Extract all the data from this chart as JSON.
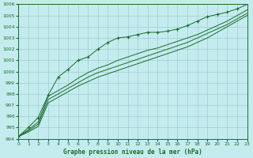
{
  "title": "Graphe pression niveau de la mer (hPa)",
  "background_color": "#c4ecee",
  "grid_color": "#9ecdd4",
  "line_color": "#1a6b2a",
  "xlim": [
    0,
    23
  ],
  "ylim": [
    994,
    1006
  ],
  "xticks": [
    0,
    1,
    2,
    3,
    4,
    5,
    6,
    7,
    8,
    9,
    10,
    11,
    12,
    13,
    14,
    15,
    16,
    17,
    18,
    19,
    20,
    21,
    22,
    23
  ],
  "yticks": [
    994,
    995,
    996,
    997,
    998,
    999,
    1000,
    1001,
    1002,
    1003,
    1004,
    1005,
    1006
  ],
  "series_plain": [
    [
      994.2,
      994.8,
      995.5,
      997.8,
      998.3,
      998.8,
      999.4,
      999.9,
      1000.3,
      1000.6,
      1001.0,
      1001.3,
      1001.6,
      1001.9,
      1002.1,
      1002.4,
      1002.7,
      1003.0,
      1003.3,
      1003.7,
      1004.1,
      1004.5,
      1005.0,
      1005.5
    ],
    [
      994.2,
      994.7,
      995.3,
      997.5,
      998.0,
      998.5,
      999.0,
      999.5,
      999.9,
      1000.2,
      1000.5,
      1000.8,
      1001.1,
      1001.4,
      1001.7,
      1002.0,
      1002.3,
      1002.6,
      1003.0,
      1003.4,
      1003.8,
      1004.2,
      1004.7,
      1005.2
    ],
    [
      994.2,
      994.6,
      995.1,
      997.2,
      997.7,
      998.2,
      998.7,
      999.1,
      999.5,
      999.8,
      1000.1,
      1000.4,
      1000.7,
      1001.0,
      1001.3,
      1001.6,
      1001.9,
      1002.2,
      1002.6,
      1003.0,
      1003.5,
      1004.0,
      1004.5,
      1005.0
    ]
  ],
  "series_marker": [
    994.2,
    995.0,
    995.9,
    997.9,
    999.5,
    1000.2,
    1001.0,
    1001.3,
    1002.0,
    1002.6,
    1003.0,
    1003.1,
    1003.3,
    1003.5,
    1003.5,
    1003.6,
    1003.8,
    1004.1,
    1004.5,
    1004.9,
    1005.1,
    1005.3,
    1005.6,
    1006.0
  ]
}
